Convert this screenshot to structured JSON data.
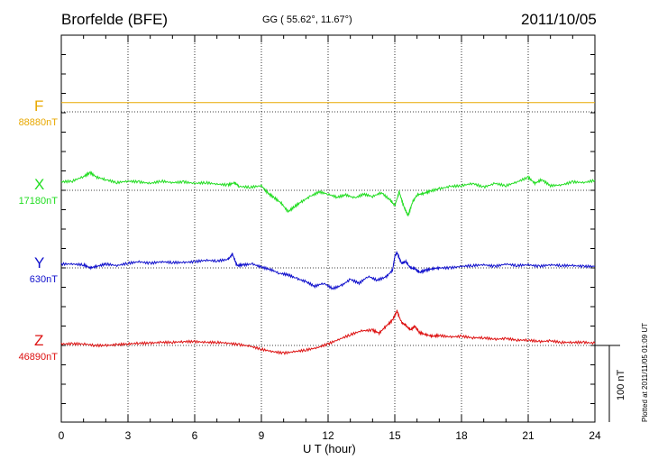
{
  "header": {
    "station": "Brorfelde (BFE)",
    "coords": "GG ( 55.62°,  11.67°)",
    "date": "2011/10/05"
  },
  "footer": {
    "plotted": "Plotted at 2011/11/05 01:09 UT"
  },
  "scale_bar": {
    "label": "100 nT",
    "value_nT": 100
  },
  "colors": {
    "F": "#e8a800",
    "X": "#22dd22",
    "Y": "#1010cc",
    "Z": "#dd1111"
  },
  "chart_data": {
    "type": "line",
    "title": "",
    "xlabel": "U T (hour)",
    "ylabel": "",
    "xlim": [
      0,
      24
    ],
    "xticks": [
      0,
      3,
      6,
      9,
      12,
      15,
      18,
      21,
      24
    ],
    "xtick_labels": [
      "0",
      "3",
      "6",
      "9",
      "12",
      "15",
      "18",
      "21",
      "24"
    ],
    "grid": true,
    "units": "nT",
    "series": [
      {
        "name": "F",
        "baseline_label": "88880nT",
        "baseline_nT": 88880,
        "x": [
          0,
          24
        ],
        "deviation_nT": [
          12,
          12
        ]
      },
      {
        "name": "X",
        "baseline_label": "17180nT",
        "baseline_nT": 17180,
        "x": [
          0,
          0.5,
          1.0,
          1.3,
          1.6,
          2.0,
          2.5,
          3.0,
          3.5,
          4.0,
          4.5,
          5.0,
          5.5,
          6.0,
          6.5,
          7.0,
          7.5,
          7.8,
          8.0,
          8.5,
          9.0,
          9.3,
          9.6,
          9.9,
          10.2,
          10.5,
          10.8,
          11.2,
          11.6,
          12.0,
          12.4,
          12.8,
          13.2,
          13.6,
          14.0,
          14.4,
          14.8,
          15.0,
          15.2,
          15.4,
          15.6,
          15.8,
          16.0,
          16.3,
          16.6,
          17.0,
          17.5,
          18.0,
          18.5,
          19.0,
          19.5,
          20.0,
          20.5,
          21.0,
          21.3,
          21.6,
          22.0,
          22.5,
          23.0,
          23.5,
          24.0
        ],
        "deviation_nT": [
          11,
          12,
          18,
          23,
          17,
          14,
          10,
          12,
          11,
          9,
          12,
          10,
          11,
          9,
          10,
          8,
          7,
          10,
          5,
          4,
          6,
          -4,
          -10,
          -17,
          -28,
          -21,
          -15,
          -8,
          -2,
          -5,
          -9,
          -6,
          -10,
          -5,
          -8,
          -3,
          -13,
          -20,
          -2,
          -21,
          -33,
          -15,
          -6,
          -4,
          -1,
          2,
          5,
          6,
          9,
          4,
          9,
          6,
          11,
          17,
          9,
          14,
          6,
          7,
          11,
          10,
          13
        ]
      },
      {
        "name": "Y",
        "baseline_label": "630nT",
        "baseline_nT": 630,
        "x": [
          0,
          0.5,
          1.0,
          1.3,
          1.6,
          2.0,
          2.5,
          3.0,
          3.5,
          4.0,
          4.5,
          5.0,
          5.5,
          6.0,
          6.5,
          7.0,
          7.5,
          7.7,
          7.9,
          8.2,
          8.6,
          9.0,
          9.4,
          9.8,
          10.2,
          10.6,
          11.0,
          11.4,
          11.8,
          12.2,
          12.6,
          13.0,
          13.4,
          13.8,
          14.2,
          14.6,
          14.9,
          15.0,
          15.1,
          15.3,
          15.5,
          15.7,
          15.9,
          16.1,
          16.4,
          16.7,
          17.0,
          17.5,
          18.0,
          18.5,
          19.0,
          19.5,
          20.0,
          20.5,
          21.0,
          21.5,
          22.0,
          22.5,
          23.0,
          23.5,
          24.0
        ],
        "deviation_nT": [
          5,
          5,
          4,
          0,
          2,
          5,
          3,
          6,
          8,
          6,
          8,
          7,
          7,
          8,
          10,
          9,
          11,
          18,
          3,
          4,
          5,
          1,
          -2,
          -7,
          -9,
          -14,
          -18,
          -24,
          -20,
          -27,
          -23,
          -15,
          -20,
          -11,
          -16,
          -12,
          -3,
          15,
          20,
          6,
          8,
          0,
          -1,
          -6,
          -3,
          -1,
          0,
          0,
          2,
          3,
          4,
          2,
          5,
          3,
          4,
          2,
          4,
          3,
          3,
          2,
          2
        ]
      },
      {
        "name": "Z",
        "baseline_label": "46890nT",
        "baseline_nT": 46890,
        "x": [
          0,
          0.5,
          1.0,
          1.5,
          2.0,
          2.5,
          3.0,
          3.5,
          4.0,
          4.5,
          5.0,
          5.5,
          6.0,
          6.5,
          7.0,
          7.5,
          8.0,
          8.5,
          9.0,
          9.5,
          10.0,
          10.5,
          11.0,
          11.5,
          12.0,
          12.5,
          13.0,
          13.5,
          14.0,
          14.3,
          14.6,
          14.9,
          15.1,
          15.3,
          15.5,
          15.7,
          15.9,
          16.1,
          16.4,
          16.7,
          17.0,
          17.5,
          18.0,
          18.5,
          19.0,
          19.5,
          20.0,
          20.5,
          21.0,
          21.5,
          22.0,
          22.5,
          23.0,
          23.5,
          24.0
        ],
        "deviation_nT": [
          2,
          2,
          2,
          0,
          0,
          1,
          2,
          3,
          3,
          4,
          4,
          5,
          5,
          4,
          4,
          3,
          1,
          -1,
          -5,
          -8,
          -10,
          -8,
          -6,
          -3,
          2,
          8,
          14,
          19,
          20,
          16,
          25,
          33,
          45,
          30,
          26,
          20,
          25,
          17,
          14,
          12,
          13,
          11,
          12,
          10,
          10,
          8,
          9,
          7,
          7,
          5,
          6,
          4,
          4,
          4,
          3
        ]
      }
    ]
  }
}
